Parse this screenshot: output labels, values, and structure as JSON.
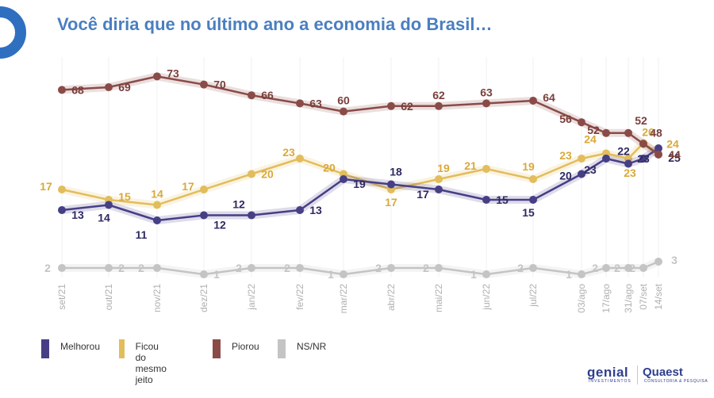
{
  "title": "Você diria que no último ano a economia do Brasil…",
  "brand": {
    "genial": "genial",
    "genial_sub": "INVESTIMENTOS",
    "quaest": "Quaest",
    "quaest_sub": "CONSULTORIA & PESQUISA"
  },
  "colors": {
    "melhorou": "#463f86",
    "ficou": "#e2bd5b",
    "piorou": "#8a4b48",
    "nsnr": "#c4c4c4",
    "title": "#4a7fc0",
    "logo_ring": "#2f6fc0"
  },
  "legend": [
    {
      "label": "Melhorou",
      "color": "#463f86"
    },
    {
      "label": "Ficou do\nmesmo jeito",
      "color": "#e2bd5b"
    },
    {
      "label": "Piorou",
      "color": "#8a4b48"
    },
    {
      "label": "NS/NR",
      "color": "#c4c4c4"
    }
  ],
  "chart_data": {
    "type": "line",
    "title": "Você diria que no último ano a economia do Brasil…",
    "x": [
      "set/21",
      "out/21",
      "nov/21",
      "dez/21",
      "jan/22",
      "fev/22",
      "mar/22",
      "abr/22",
      "mai/22",
      "jun/22",
      "jul/22",
      "03/ago",
      "17/ago",
      "31/ago",
      "07/set",
      "14/set"
    ],
    "ylim": [
      0,
      80
    ],
    "grid": "vertical",
    "legend_position": "bottom",
    "series": [
      {
        "name": "Melhorou",
        "color": "#463f86",
        "values": [
          13,
          14,
          11,
          12,
          12,
          13,
          19,
          18,
          17,
          15,
          15,
          20,
          23,
          22,
          23,
          25
        ]
      },
      {
        "name": "Ficou do mesmo jeito",
        "color": "#e2bd5b",
        "values": [
          17,
          15,
          14,
          17,
          20,
          23,
          20,
          17,
          19,
          21,
          19,
          23,
          24,
          23,
          26,
          24
        ]
      },
      {
        "name": "Piorou",
        "color": "#8a4b48",
        "values": [
          68,
          69,
          73,
          70,
          66,
          63,
          60,
          62,
          62,
          63,
          64,
          56,
          52,
          52,
          48,
          44
        ]
      },
      {
        "name": "NS/NR",
        "color": "#c4c4c4",
        "values": [
          2,
          2,
          2,
          1,
          2,
          2,
          1,
          2,
          2,
          1,
          2,
          1,
          2,
          2,
          2,
          3
        ]
      }
    ],
    "data_labels": {
      "Melhorou": [
        "13",
        "14",
        "11",
        "12",
        "12",
        "13",
        "19",
        "18",
        "17",
        "15",
        "15",
        "20",
        "23",
        "22",
        "23",
        "25"
      ],
      "Ficou do mesmo jeito": [
        "17",
        "15",
        "14",
        "17",
        "20",
        "23",
        "20",
        "17",
        "19",
        "21",
        "19",
        "23",
        "24",
        "23",
        "26",
        "24"
      ],
      "Piorou": [
        "68",
        "69",
        "73",
        "70",
        "66",
        "63",
        "60",
        "62",
        "62",
        "63",
        "64",
        "56",
        "52",
        "52",
        "48",
        "44"
      ],
      "NS/NR": [
        "2",
        "2",
        "2",
        "1",
        "2",
        "2",
        "1",
        "2",
        "2",
        "1",
        "2",
        "1",
        "2",
        "2",
        "2",
        "3"
      ]
    }
  }
}
